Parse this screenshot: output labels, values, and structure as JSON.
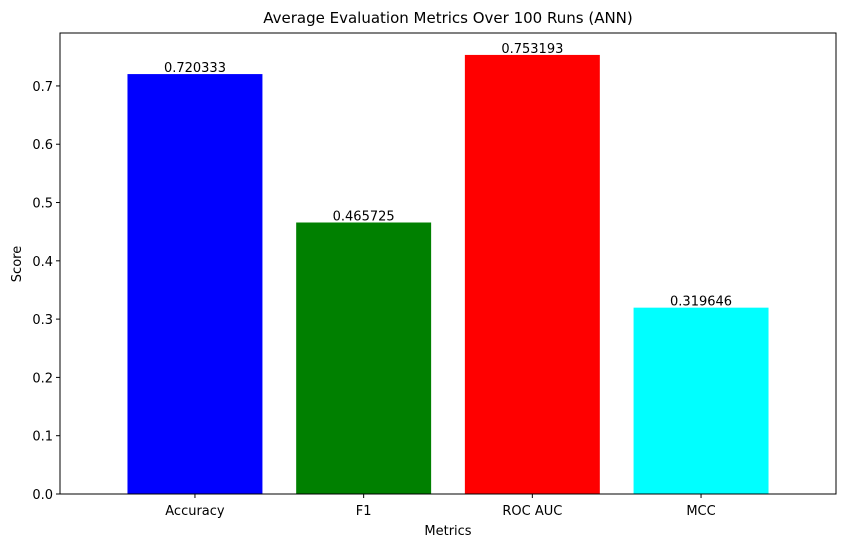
{
  "chart_data": {
    "type": "bar",
    "title": "Average Evaluation Metrics Over 100 Runs (ANN)",
    "xlabel": "Metrics",
    "ylabel": "Score",
    "categories": [
      "Accuracy",
      "F1",
      "ROC AUC",
      "MCC"
    ],
    "values": [
      0.720333,
      0.465725,
      0.753193,
      0.319646
    ],
    "value_labels": [
      "0.720333",
      "0.465725",
      "0.753193",
      "0.319646"
    ],
    "colors": [
      "#0000ff",
      "#008000",
      "#ff0000",
      "#00ffff"
    ],
    "ylim": [
      0,
      0.7908
    ],
    "yticks": [
      0.0,
      0.1,
      0.2,
      0.3,
      0.4,
      0.5,
      0.6,
      0.7
    ],
    "ytick_labels": [
      "0.0",
      "0.1",
      "0.2",
      "0.3",
      "0.4",
      "0.5",
      "0.6",
      "0.7"
    ],
    "grid": false,
    "legend": "none"
  }
}
